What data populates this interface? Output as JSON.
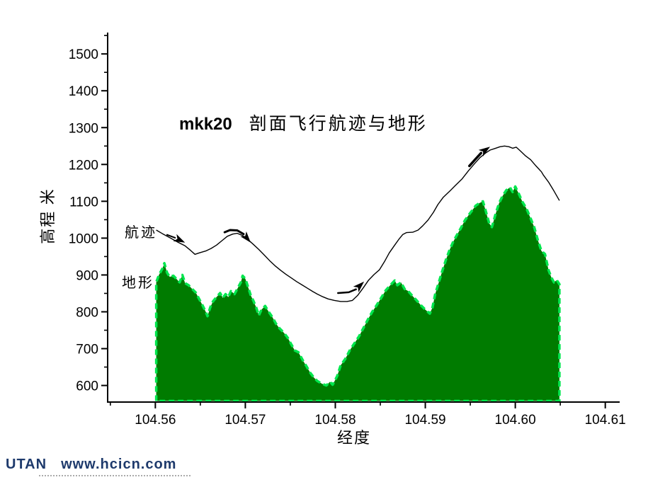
{
  "title": {
    "prefix": "mkk20",
    "main": "剖面飞行航迹与地形"
  },
  "footer": {
    "brand": "UTAN",
    "url": "www.hcicn.com",
    "color": "#1E3A6C"
  },
  "chart_data": {
    "type": "area",
    "title": "mkk20 剖面飞行航迹与地形",
    "xlabel": "经度",
    "ylabel": "高程 米",
    "xlim": [
      104.5547,
      104.6116
    ],
    "ylim": [
      555,
      1558
    ],
    "grid": false,
    "x_ticks_major": [
      104.56,
      104.57,
      104.58,
      104.59,
      104.6,
      104.61
    ],
    "x_ticks_minor": [
      104.555,
      104.565,
      104.575,
      104.585,
      104.595,
      104.605
    ],
    "y_ticks_major": [
      600,
      700,
      800,
      900,
      1000,
      1100,
      1200,
      1300,
      1400,
      1500
    ],
    "y_ticks_minor": [
      650,
      750,
      850,
      950,
      1050,
      1150,
      1250,
      1350,
      1450,
      1550
    ],
    "colors": {
      "terrain_fill": "#007B00",
      "terrain_edge": "#00E64D",
      "trajectory": "#000000",
      "axis": "#000000"
    },
    "series": [
      {
        "name": "地形",
        "type": "area",
        "points": [
          [
            104.5601,
            880
          ],
          [
            104.5604,
            900
          ],
          [
            104.5608,
            918
          ],
          [
            104.561,
            932
          ],
          [
            104.5613,
            906
          ],
          [
            104.5616,
            895
          ],
          [
            104.562,
            898
          ],
          [
            104.5624,
            888
          ],
          [
            104.5627,
            880
          ],
          [
            104.563,
            900
          ],
          [
            104.5633,
            878
          ],
          [
            104.5637,
            872
          ],
          [
            104.5641,
            862
          ],
          [
            104.5645,
            852
          ],
          [
            104.5648,
            838
          ],
          [
            104.5652,
            820
          ],
          [
            104.5656,
            800
          ],
          [
            104.5658,
            788
          ],
          [
            104.5661,
            812
          ],
          [
            104.5664,
            828
          ],
          [
            104.5668,
            840
          ],
          [
            104.5672,
            851
          ],
          [
            104.5675,
            838
          ],
          [
            104.5678,
            848
          ],
          [
            104.5681,
            840
          ],
          [
            104.5684,
            856
          ],
          [
            104.5688,
            848
          ],
          [
            104.5691,
            862
          ],
          [
            104.5695,
            880
          ],
          [
            104.5697,
            898
          ],
          [
            104.57,
            890
          ],
          [
            104.5703,
            868
          ],
          [
            104.5706,
            845
          ],
          [
            104.5709,
            830
          ],
          [
            104.5712,
            812
          ],
          [
            104.5715,
            790
          ],
          [
            104.5718,
            806
          ],
          [
            104.5722,
            816
          ],
          [
            104.5726,
            800
          ],
          [
            104.573,
            786
          ],
          [
            104.5734,
            768
          ],
          [
            104.5738,
            755
          ],
          [
            104.5743,
            743
          ],
          [
            104.5747,
            730
          ],
          [
            104.5751,
            712
          ],
          [
            104.5755,
            695
          ],
          [
            104.5759,
            690
          ],
          [
            104.5764,
            668
          ],
          [
            104.5768,
            652
          ],
          [
            104.5772,
            635
          ],
          [
            104.5776,
            622
          ],
          [
            104.578,
            612
          ],
          [
            104.5785,
            605
          ],
          [
            104.579,
            600
          ],
          [
            104.5794,
            610
          ],
          [
            104.5797,
            602
          ],
          [
            104.5802,
            625
          ],
          [
            104.5806,
            655
          ],
          [
            104.5811,
            672
          ],
          [
            104.5816,
            695
          ],
          [
            104.582,
            710
          ],
          [
            104.5826,
            732
          ],
          [
            104.5831,
            755
          ],
          [
            104.5836,
            778
          ],
          [
            104.5841,
            800
          ],
          [
            104.5846,
            818
          ],
          [
            104.5851,
            838
          ],
          [
            104.5856,
            858
          ],
          [
            104.5861,
            872
          ],
          [
            104.5866,
            885
          ],
          [
            104.5869,
            872
          ],
          [
            104.5873,
            880
          ],
          [
            104.5877,
            862
          ],
          [
            104.5881,
            856
          ],
          [
            104.5885,
            845
          ],
          [
            104.589,
            832
          ],
          [
            104.5895,
            818
          ],
          [
            104.59,
            806
          ],
          [
            104.5905,
            795
          ],
          [
            104.5908,
            812
          ],
          [
            104.5911,
            848
          ],
          [
            104.5915,
            880
          ],
          [
            104.5919,
            912
          ],
          [
            104.5923,
            942
          ],
          [
            104.5927,
            968
          ],
          [
            104.5931,
            990
          ],
          [
            104.5935,
            1008
          ],
          [
            104.5939,
            1025
          ],
          [
            104.5944,
            1048
          ],
          [
            104.5948,
            1062
          ],
          [
            104.5952,
            1075
          ],
          [
            104.5956,
            1088
          ],
          [
            104.596,
            1095
          ],
          [
            104.5964,
            1100
          ],
          [
            104.5967,
            1075
          ],
          [
            104.5971,
            1040
          ],
          [
            104.5974,
            1030
          ],
          [
            104.5978,
            1065
          ],
          [
            104.5982,
            1095
          ],
          [
            104.5986,
            1115
          ],
          [
            104.599,
            1130
          ],
          [
            104.5994,
            1138
          ],
          [
            104.5997,
            1125
          ],
          [
            104.6,
            1140
          ],
          [
            104.6004,
            1120
          ],
          [
            104.6008,
            1098
          ],
          [
            104.6012,
            1082
          ],
          [
            104.6016,
            1060
          ],
          [
            104.6021,
            1030
          ],
          [
            104.6025,
            995
          ],
          [
            104.6029,
            965
          ],
          [
            104.6033,
            957
          ],
          [
            104.6037,
            913
          ],
          [
            104.604,
            894
          ],
          [
            104.6043,
            880
          ],
          [
            104.6046,
            886
          ],
          [
            104.6049,
            875
          ]
        ]
      },
      {
        "name": "航迹",
        "type": "line",
        "points": [
          [
            104.5601,
            1022
          ],
          [
            104.5608,
            1012
          ],
          [
            104.5617,
            1000
          ],
          [
            104.5625,
            989
          ],
          [
            104.5633,
            979
          ],
          [
            104.5639,
            967
          ],
          [
            104.5644,
            956
          ],
          [
            104.5649,
            960
          ],
          [
            104.5656,
            965
          ],
          [
            104.5662,
            972
          ],
          [
            104.5668,
            981
          ],
          [
            104.5674,
            993
          ],
          [
            104.568,
            1005
          ],
          [
            104.5686,
            1011
          ],
          [
            104.5691,
            1013
          ],
          [
            104.5697,
            1007
          ],
          [
            104.5703,
            996
          ],
          [
            104.5709,
            983
          ],
          [
            104.5715,
            969
          ],
          [
            104.5721,
            954
          ],
          [
            104.5727,
            939
          ],
          [
            104.5733,
            925
          ],
          [
            104.5739,
            913
          ],
          [
            104.5745,
            902
          ],
          [
            104.5751,
            892
          ],
          [
            104.5757,
            882
          ],
          [
            104.5763,
            873
          ],
          [
            104.5769,
            864
          ],
          [
            104.5775,
            855
          ],
          [
            104.578,
            848
          ],
          [
            104.5786,
            841
          ],
          [
            104.5792,
            835
          ],
          [
            104.5799,
            831
          ],
          [
            104.5806,
            828
          ],
          [
            104.5813,
            828
          ],
          [
            104.5819,
            831
          ],
          [
            104.5825,
            845
          ],
          [
            104.5831,
            865
          ],
          [
            104.5837,
            886
          ],
          [
            104.5843,
            901
          ],
          [
            104.5849,
            914
          ],
          [
            104.5855,
            938
          ],
          [
            104.586,
            960
          ],
          [
            104.5866,
            981
          ],
          [
            104.5871,
            998
          ],
          [
            104.5875,
            1010
          ],
          [
            104.5879,
            1015
          ],
          [
            104.5886,
            1016
          ],
          [
            104.5892,
            1022
          ],
          [
            104.5897,
            1033
          ],
          [
            104.5903,
            1049
          ],
          [
            104.5909,
            1070
          ],
          [
            104.5914,
            1091
          ],
          [
            104.592,
            1111
          ],
          [
            104.5927,
            1127
          ],
          [
            104.5933,
            1142
          ],
          [
            104.5941,
            1161
          ],
          [
            104.5948,
            1183
          ],
          [
            104.5955,
            1203
          ],
          [
            104.5961,
            1219
          ],
          [
            104.5967,
            1231
          ],
          [
            104.5972,
            1239
          ],
          [
            104.5977,
            1243
          ],
          [
            104.5983,
            1248
          ],
          [
            104.5988,
            1250
          ],
          [
            104.5993,
            1248
          ],
          [
            104.5997,
            1244
          ],
          [
            104.6001,
            1247
          ],
          [
            104.6006,
            1236
          ],
          [
            104.6011,
            1224
          ],
          [
            104.6017,
            1213
          ],
          [
            104.6023,
            1196
          ],
          [
            104.6029,
            1180
          ],
          [
            104.6031,
            1172
          ],
          [
            104.6037,
            1152
          ],
          [
            104.6043,
            1128
          ],
          [
            104.6049,
            1102
          ]
        ]
      }
    ],
    "annotations": {
      "arrows": [
        {
          "tail": [
            [
              104.5613,
              1009
            ],
            [
              104.5622,
              1001
            ]
          ],
          "tip": [
            104.5633,
            988
          ],
          "width": 2
        },
        {
          "tail": [
            [
              104.5677,
              1016
            ],
            [
              104.5683,
              1022
            ],
            [
              104.5691,
              1021
            ],
            [
              104.5698,
              1011
            ]
          ],
          "tip": [
            104.5706,
            988
          ],
          "width": 3
        },
        {
          "tail": [
            [
              104.5803,
              851
            ],
            [
              104.5815,
              853
            ],
            [
              104.5823,
              861
            ]
          ],
          "tip": [
            104.5832,
            882
          ],
          "width": 2.5
        },
        {
          "tail": [
            [
              104.5949,
              1196
            ],
            [
              104.5956,
              1215
            ],
            [
              104.5962,
              1231
            ]
          ],
          "tip": [
            104.5972,
            1248
          ],
          "width": 3.5
        }
      ]
    },
    "legend_position": "inline-left"
  }
}
